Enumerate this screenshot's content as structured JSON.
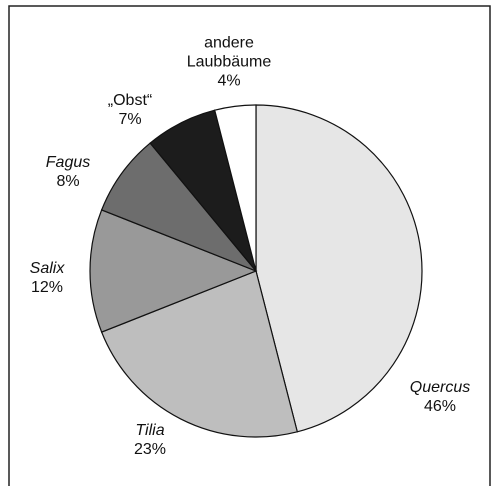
{
  "chart_data": {
    "type": "pie",
    "categories": [
      "Quercus",
      "Tilia",
      "Salix",
      "Fagus",
      "„Obst“",
      "andere Laubbäume"
    ],
    "values": [
      46,
      23,
      12,
      8,
      7,
      4
    ],
    "value_labels": [
      "46%",
      "23%",
      "12%",
      "8%",
      "7%",
      "4%"
    ],
    "colors": [
      "#e6e6e6",
      "#bebebe",
      "#999999",
      "#6d6d6d",
      "#1c1c1c",
      "#ffffff"
    ]
  }
}
